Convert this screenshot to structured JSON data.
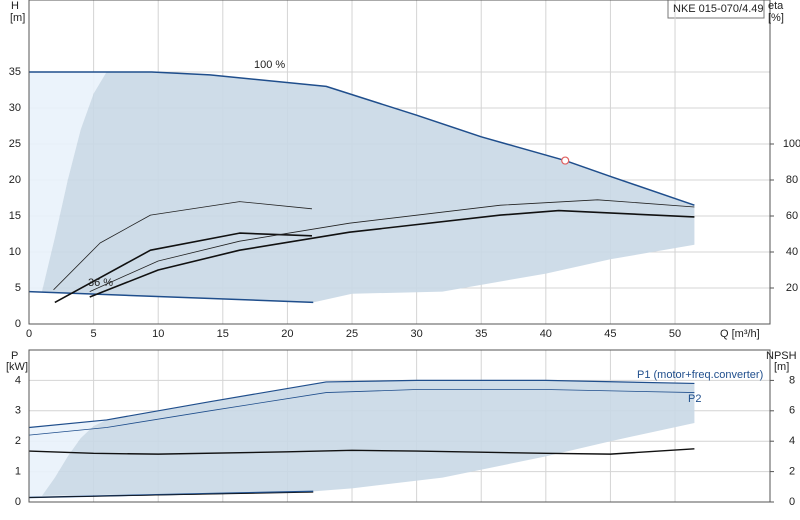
{
  "chart_data": [
    {
      "type": "line",
      "title": "NKE 015-070/4.49",
      "y_label": "H",
      "y_unit": "[m]",
      "y2_label": "eta",
      "y2_unit": "[%]",
      "x_label": "Q [m³/h]",
      "xlim": [
        0,
        57.35
      ],
      "xticks": [
        0,
        5,
        10,
        15,
        20,
        25,
        30,
        35,
        40,
        45,
        50
      ],
      "ylim": [
        0,
        45
      ],
      "yticks": [
        0,
        5,
        10,
        15,
        20,
        25,
        30,
        35
      ],
      "y2lim": [
        0,
        180
      ],
      "y2ticks": [
        20,
        40,
        60,
        80,
        100
      ],
      "grid": true,
      "annotations": [
        "100 %",
        "36 %"
      ],
      "series": [
        {
          "kind": "area",
          "color": "#e9f2fb",
          "x": [
            0,
            6,
            5,
            4,
            3,
            2,
            1,
            0
          ],
          "values": [
            35,
            35,
            32,
            27,
            20,
            12,
            4.5,
            4.5
          ]
        },
        {
          "kind": "area",
          "color": "#c9d8e6",
          "x": [
            6,
            9.5,
            14,
            23,
            30,
            35,
            41.5,
            45,
            51.5,
            51.5,
            45,
            40,
            32,
            25,
            22,
            1,
            2,
            3,
            4,
            5
          ],
          "values": [
            35,
            35,
            34.6,
            33,
            29,
            26,
            22.7,
            20.5,
            16.5,
            11,
            9,
            7,
            4.5,
            4.2,
            3,
            4.5,
            12,
            20,
            27,
            32
          ]
        },
        {
          "kind": "line",
          "color": "#1f4e8c",
          "width": 1.5,
          "x": [
            0,
            6,
            9.5,
            14,
            23,
            30,
            35,
            41.5,
            45,
            51.5
          ],
          "values": [
            35,
            35,
            35,
            34.6,
            33,
            29,
            26,
            22.7,
            20.5,
            16.5
          ]
        },
        {
          "kind": "line",
          "color": "#1f4e8c",
          "width": 1.5,
          "x": [
            0,
            22
          ],
          "values": [
            4.5,
            3
          ]
        },
        {
          "kind": "line",
          "axis": "y2",
          "color": "#222",
          "width": 0.8,
          "x": [
            1.9,
            5.5,
            9.4,
            16.3,
            21.9
          ],
          "values": [
            19,
            45,
            60.5,
            68,
            64
          ]
        },
        {
          "kind": "line",
          "axis": "y2",
          "color": "#111",
          "width": 1.6,
          "x": [
            2,
            9.4,
            16.3,
            21.9
          ],
          "values": [
            12,
            41,
            50.5,
            49
          ]
        },
        {
          "kind": "line",
          "axis": "y2",
          "color": "#222",
          "width": 0.8,
          "x": [
            4.7,
            10,
            16.3,
            24.8,
            36.5,
            44,
            51.5
          ],
          "values": [
            18,
            35,
            46,
            56,
            66,
            69,
            65
          ]
        },
        {
          "kind": "line",
          "axis": "y2",
          "color": "#111",
          "width": 1.6,
          "x": [
            4.7,
            10,
            16.3,
            24.8,
            36.5,
            41,
            51.5
          ],
          "values": [
            15,
            30,
            41,
            51,
            60.5,
            63,
            59.5
          ]
        },
        {
          "kind": "marker",
          "color": "#e06060",
          "x": [
            41.5
          ],
          "values": [
            22.7
          ]
        }
      ]
    },
    {
      "type": "line",
      "y_label": "P",
      "y_unit": "[kW]",
      "y2_label": "NPSH",
      "y2_unit": "[m]",
      "xlim": [
        0,
        57.35
      ],
      "xticks": [
        0,
        5,
        10,
        15,
        20,
        25,
        30,
        35,
        40,
        45,
        50
      ],
      "ylim": [
        0,
        5
      ],
      "yticks": [
        0,
        1,
        2,
        3,
        4
      ],
      "y2lim": [
        0,
        10
      ],
      "y2ticks": [
        0,
        2,
        4,
        6,
        8
      ],
      "grid": true,
      "series": [
        {
          "kind": "area",
          "color": "#e9f2fb",
          "x": [
            0,
            6,
            5,
            4,
            3,
            2,
            1,
            0
          ],
          "values": [
            2.45,
            2.7,
            2.5,
            2.1,
            1.5,
            0.8,
            0.2,
            0.15
          ]
        },
        {
          "kind": "area",
          "color": "#c9d8e6",
          "x": [
            6,
            14,
            23,
            30,
            40,
            51.5,
            51.5,
            45,
            40,
            32,
            25,
            22,
            1,
            2,
            3,
            4,
            5
          ],
          "values": [
            2.7,
            3.3,
            3.95,
            4.0,
            4.0,
            3.9,
            2.6,
            2.0,
            1.5,
            0.8,
            0.45,
            0.35,
            0.2,
            0.8,
            1.5,
            2.1,
            2.5
          ]
        },
        {
          "kind": "line",
          "name": "P1 (motor+freq.converter)",
          "color": "#1f4e8c",
          "width": 1.2,
          "x": [
            0,
            6,
            14,
            23,
            30,
            40,
            51.5
          ],
          "values": [
            2.45,
            2.7,
            3.3,
            3.95,
            4.0,
            4.0,
            3.9
          ]
        },
        {
          "kind": "line",
          "name": "P2",
          "color": "#1f4e8c",
          "width": 0.8,
          "x": [
            0,
            6,
            14,
            23,
            30,
            40,
            51.5
          ],
          "values": [
            2.2,
            2.45,
            3.0,
            3.6,
            3.7,
            3.7,
            3.6
          ]
        },
        {
          "kind": "line",
          "color": "#1f4e8c",
          "width": 1.5,
          "x": [
            0,
            22
          ],
          "values": [
            0.15,
            0.35
          ]
        },
        {
          "kind": "line",
          "color": "#111",
          "width": 0.8,
          "x": [
            0,
            22
          ],
          "values": [
            0.15,
            0.32
          ]
        },
        {
          "kind": "line",
          "axis": "y2",
          "color": "#111",
          "width": 1.4,
          "x": [
            0,
            5,
            10,
            20,
            25,
            30,
            40,
            45,
            51.5
          ],
          "values": [
            3.35,
            3.2,
            3.15,
            3.3,
            3.4,
            3.35,
            3.2,
            3.15,
            3.5
          ]
        }
      ]
    }
  ]
}
